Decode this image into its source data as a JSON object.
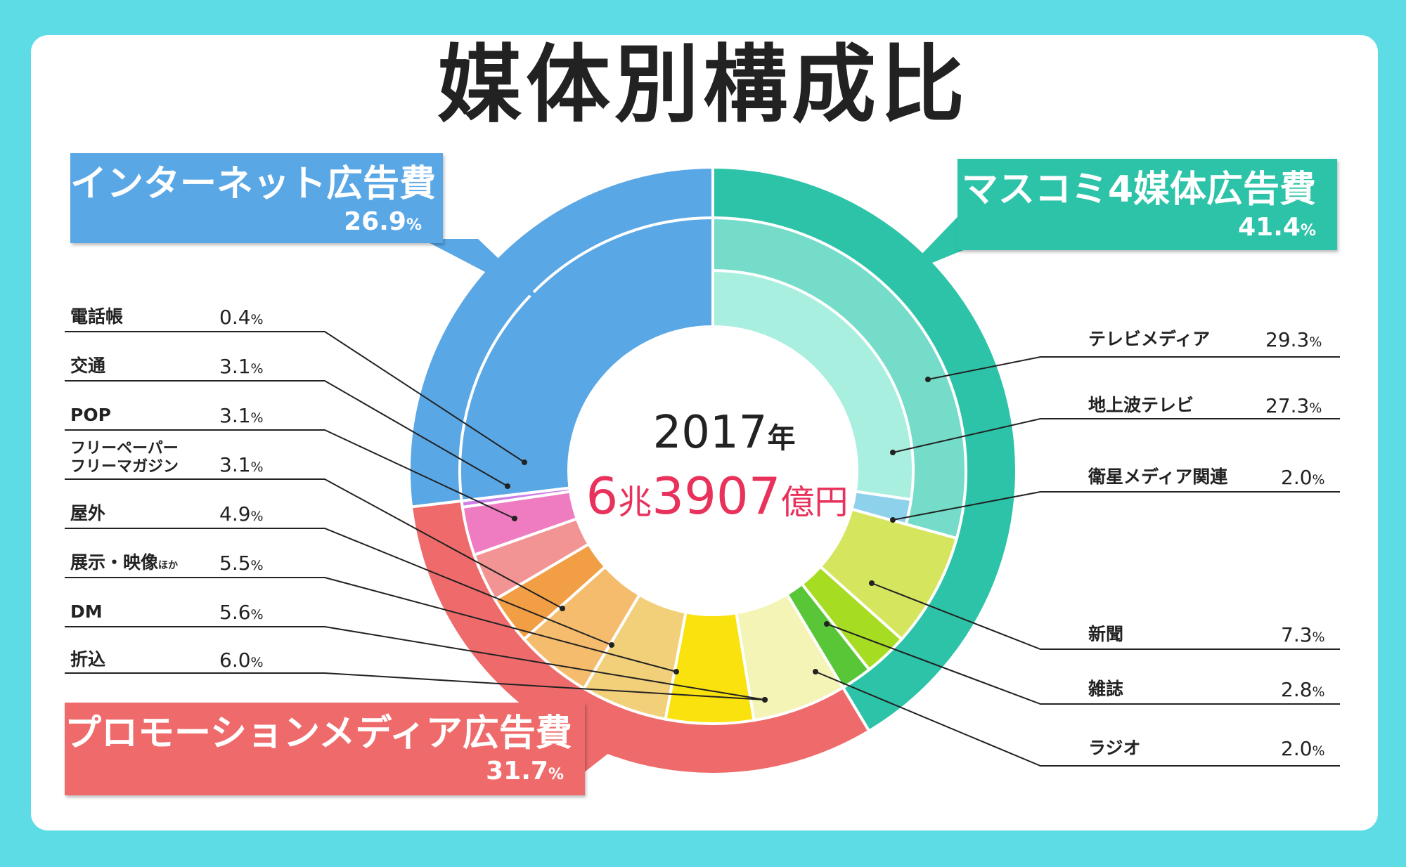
{
  "title": "媒体別構成比",
  "center": {
    "year": "2017",
    "year_unit": "年",
    "total_a": "6",
    "total_b": "兆",
    "total_c": "3907",
    "total_d": "億円"
  },
  "groups": {
    "internet": {
      "name": "インターネット広告費",
      "value": "26.9",
      "unit": "%",
      "color": "#5aa7e6"
    },
    "mass": {
      "name": "マスコミ4媒体広告費",
      "value": "41.4",
      "unit": "%",
      "color": "#2dc3a8"
    },
    "promo": {
      "name": "プロモーションメディア広告費",
      "value": "31.7",
      "unit": "%",
      "color": "#ef6b6b"
    }
  },
  "left_items": [
    {
      "name": "電話帳",
      "value": "0.4",
      "unit": "%"
    },
    {
      "name": "交通",
      "value": "3.1",
      "unit": "%"
    },
    {
      "name": "POP",
      "value": "3.1",
      "unit": "%"
    },
    {
      "name": "フリーペーパー",
      "name2": "フリーマガジン",
      "value": "3.1",
      "unit": "%"
    },
    {
      "name": "屋外",
      "value": "4.9",
      "unit": "%"
    },
    {
      "name": "展示・映像",
      "suffix": "ほか",
      "value": "5.5",
      "unit": "%"
    },
    {
      "name": "DM",
      "value": "5.6",
      "unit": "%"
    },
    {
      "name": "折込",
      "value": "6.0",
      "unit": "%"
    }
  ],
  "right_items": [
    {
      "name": "テレビメディア",
      "value": "29.3",
      "unit": "%"
    },
    {
      "name": "地上波テレビ",
      "value": "27.3",
      "unit": "%"
    },
    {
      "name": "衛星メディア関連",
      "value": "2.0",
      "unit": "%"
    },
    {
      "name": "新聞",
      "value": "7.3",
      "unit": "%"
    },
    {
      "name": "雑誌",
      "value": "2.8",
      "unit": "%"
    },
    {
      "name": "ラジオ",
      "value": "2.0",
      "unit": "%"
    }
  ],
  "chart_data": {
    "type": "pie",
    "title": "媒体別構成比",
    "outer_ring": [
      {
        "name": "マスコミ4媒体広告費",
        "value": 41.4,
        "color": "#2dc3a8"
      },
      {
        "name": "プロモーションメディア広告費",
        "value": 31.7,
        "color": "#ef6b6b"
      },
      {
        "name": "インターネット広告費",
        "value": 26.9,
        "color": "#5aa7e6"
      }
    ],
    "middle_ring": [
      {
        "name": "テレビメディア",
        "value": 29.3,
        "color": "#74dcc8"
      },
      {
        "name": "新聞",
        "value": 7.3,
        "color": "#d5e55e"
      },
      {
        "name": "雑誌",
        "value": 2.8,
        "color": "#a6dc22"
      },
      {
        "name": "ラジオ",
        "value": 2.0,
        "color": "#58c637"
      },
      {
        "name": "折込",
        "value": 6.0,
        "color": "#f4f4b6"
      },
      {
        "name": "DM",
        "value": 5.6,
        "color": "#fae20f"
      },
      {
        "name": "展示・映像ほか",
        "value": 5.5,
        "color": "#f2d07a"
      },
      {
        "name": "屋外",
        "value": 4.9,
        "color": "#f5bc6e"
      },
      {
        "name": "フリーペーパー・フリーマガジン",
        "value": 3.1,
        "color": "#f29e45"
      },
      {
        "name": "POP",
        "value": 3.1,
        "color": "#f29494"
      },
      {
        "name": "交通",
        "value": 3.1,
        "color": "#ef7cc1"
      },
      {
        "name": "電話帳",
        "value": 0.4,
        "color": "#cc80e6"
      },
      {
        "name": "インターネット広告費",
        "value": 26.9,
        "color": "#5aa7e6"
      }
    ],
    "inner_ring": [
      {
        "name": "地上波テレビ",
        "value": 27.3,
        "color": "#a8efe0"
      },
      {
        "name": "衛星メディア関連",
        "value": 2.0,
        "color": "#8ed1ea"
      }
    ],
    "center_label": "2017年 6兆3907億円"
  }
}
